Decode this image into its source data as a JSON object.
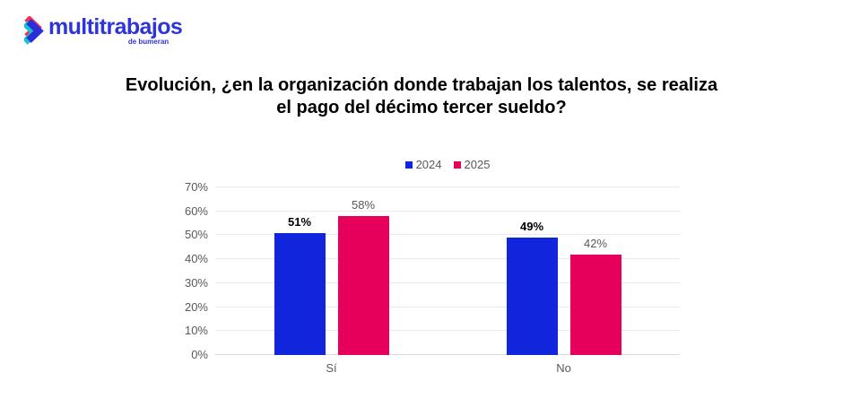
{
  "logo": {
    "brand": "multitrabajos",
    "sub": "de bumeran",
    "color": "#2E35D8",
    "icon_colors": {
      "pink": "#F0304F",
      "teal": "#15C6CF",
      "blue": "#2B2FD9"
    }
  },
  "title": {
    "line1": "Evolución, ¿en la organización donde trabajan los talentos, se realiza",
    "line2": "el pago del décimo tercer sueldo?"
  },
  "chart_data": {
    "type": "bar",
    "title": "Evolución, ¿en la organización donde trabajan los talentos, se realiza el pago del décimo tercer sueldo?",
    "categories": [
      "Sí",
      "No"
    ],
    "series": [
      {
        "name": "2024",
        "color": "#1126DC",
        "values": [
          51,
          49
        ],
        "value_labels": [
          "51%",
          "49%"
        ],
        "label_color": "#000000",
        "label_bold": true
      },
      {
        "name": "2025",
        "color": "#E6005C",
        "values": [
          58,
          42
        ],
        "value_labels": [
          "58%",
          "42%"
        ],
        "label_color": "#595959",
        "label_bold": false
      }
    ],
    "xlabel": "",
    "ylabel": "",
    "ylim": [
      0,
      70
    ],
    "yticks": [
      "0%",
      "10%",
      "20%",
      "30%",
      "40%",
      "50%",
      "60%",
      "70%"
    ],
    "grid": true,
    "grid_color": "#E9E9E9",
    "baseline_color": "#D9D9D9",
    "axis_text_color": "#595959",
    "legend_position": "top-center"
  }
}
